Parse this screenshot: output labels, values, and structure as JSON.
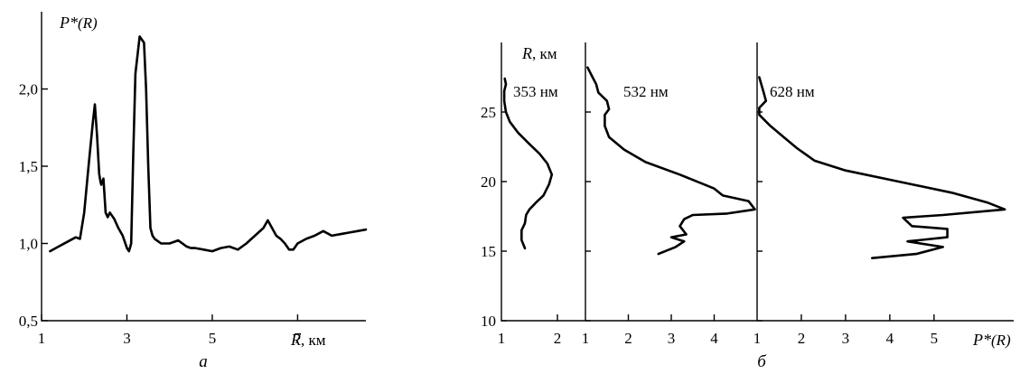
{
  "chart_data": [
    {
      "panel": "а",
      "type": "line",
      "ylabel_symbol": "P*",
      "ylabel_arg": "(R)",
      "xlabel_symbol": "R",
      "xlabel_unit": ", км",
      "xlim": [
        1,
        8.6
      ],
      "ylim": [
        0.5,
        2.5
      ],
      "xticks": [
        "1",
        "3",
        "5",
        "7"
      ],
      "yticks": [
        "0,5",
        "1,0",
        "1,5",
        "2,0"
      ],
      "series": [
        {
          "x": [
            1.2,
            1.4,
            1.6,
            1.8,
            1.9,
            2.0,
            2.1,
            2.2,
            2.25,
            2.3,
            2.35,
            2.38,
            2.4,
            2.45,
            2.5,
            2.55,
            2.6,
            2.65,
            2.7,
            2.8,
            2.9,
            3.0,
            3.05,
            3.1,
            3.15,
            3.2,
            3.3,
            3.4,
            3.45,
            3.5,
            3.55,
            3.6,
            3.65,
            3.7,
            3.8,
            4.0,
            4.2,
            4.3,
            4.4,
            4.5,
            4.6,
            4.8,
            5.0,
            5.2,
            5.4,
            5.6,
            5.8,
            6.0,
            6.2,
            6.3,
            6.4,
            6.5,
            6.6,
            6.7,
            6.8,
            6.9,
            7.0,
            7.2,
            7.4,
            7.6,
            7.8,
            8.0,
            8.2,
            8.4,
            8.6
          ],
          "y": [
            0.95,
            0.98,
            1.01,
            1.04,
            1.03,
            1.2,
            1.5,
            1.78,
            1.9,
            1.7,
            1.45,
            1.4,
            1.38,
            1.42,
            1.2,
            1.17,
            1.2,
            1.18,
            1.16,
            1.1,
            1.05,
            0.97,
            0.95,
            1.0,
            1.6,
            2.1,
            2.34,
            2.3,
            2.0,
            1.5,
            1.1,
            1.05,
            1.03,
            1.02,
            1.0,
            1.0,
            1.02,
            1.0,
            0.98,
            0.97,
            0.97,
            0.96,
            0.95,
            0.97,
            0.98,
            0.96,
            1.0,
            1.05,
            1.1,
            1.15,
            1.1,
            1.05,
            1.03,
            1.0,
            0.96,
            0.96,
            1.0,
            1.03,
            1.05,
            1.08,
            1.05,
            1.06,
            1.07,
            1.08,
            1.09
          ]
        }
      ]
    },
    {
      "panel": "б",
      "type": "line",
      "orientation": "vertical-profile",
      "ylabel_symbol": "R",
      "ylabel_unit": ", км",
      "xlabel_symbol": "P*",
      "xlabel_arg": "(R)",
      "ylim": [
        10,
        30
      ],
      "yticks": [
        "10",
        "15",
        "20",
        "25"
      ],
      "subpanels": [
        {
          "name": "353 нм",
          "xlim": [
            1,
            2.5
          ],
          "xticks": [
            "1",
            "2"
          ],
          "x": [
            1.42,
            1.36,
            1.36,
            1.42,
            1.44,
            1.5,
            1.62,
            1.75,
            1.85,
            1.9,
            1.82,
            1.68,
            1.5,
            1.3,
            1.15,
            1.08,
            1.05,
            1.05,
            1.08,
            1.06
          ],
          "y": [
            15.2,
            15.8,
            16.5,
            17.0,
            17.6,
            18.0,
            18.5,
            19.0,
            19.8,
            20.5,
            21.3,
            22.0,
            22.7,
            23.5,
            24.3,
            25.0,
            25.8,
            26.5,
            27.0,
            27.4
          ]
        },
        {
          "name": "532 нм",
          "xlim": [
            1,
            5
          ],
          "xticks": [
            "1",
            "2",
            "3",
            "4"
          ],
          "x": [
            2.7,
            3.1,
            3.3,
            3.0,
            3.35,
            3.2,
            3.3,
            3.5,
            4.3,
            4.95,
            4.8,
            4.2,
            4.0,
            3.2,
            2.4,
            1.9,
            1.55,
            1.45,
            1.45,
            1.55,
            1.5,
            1.3,
            1.25,
            1.15,
            1.05
          ],
          "y": [
            14.8,
            15.3,
            15.7,
            16.0,
            16.2,
            16.8,
            17.3,
            17.6,
            17.7,
            18.0,
            18.6,
            19.0,
            19.5,
            20.5,
            21.4,
            22.3,
            23.2,
            24.0,
            24.8,
            25.2,
            25.8,
            26.4,
            27.0,
            27.6,
            28.2
          ]
        },
        {
          "name": "628 нм",
          "xlim": [
            1,
            6.8
          ],
          "xticks": [
            "1",
            "2",
            "3",
            "4",
            "5"
          ],
          "xlast_label_symbol": "P*",
          "xlast_label_arg": "(R)",
          "x": [
            3.6,
            4.6,
            5.2,
            4.4,
            5.3,
            5.3,
            4.5,
            4.3,
            5.2,
            6.6,
            6.2,
            5.4,
            4.2,
            3.0,
            2.3,
            1.9,
            1.6,
            1.3,
            1.05,
            1.05,
            1.2,
            1.15,
            1.05
          ],
          "y": [
            14.5,
            14.8,
            15.3,
            15.7,
            16.0,
            16.6,
            16.8,
            17.4,
            17.6,
            18.0,
            18.5,
            19.2,
            20.0,
            20.8,
            21.5,
            22.4,
            23.2,
            24.0,
            24.8,
            25.3,
            25.8,
            26.4,
            27.5
          ]
        }
      ]
    }
  ]
}
